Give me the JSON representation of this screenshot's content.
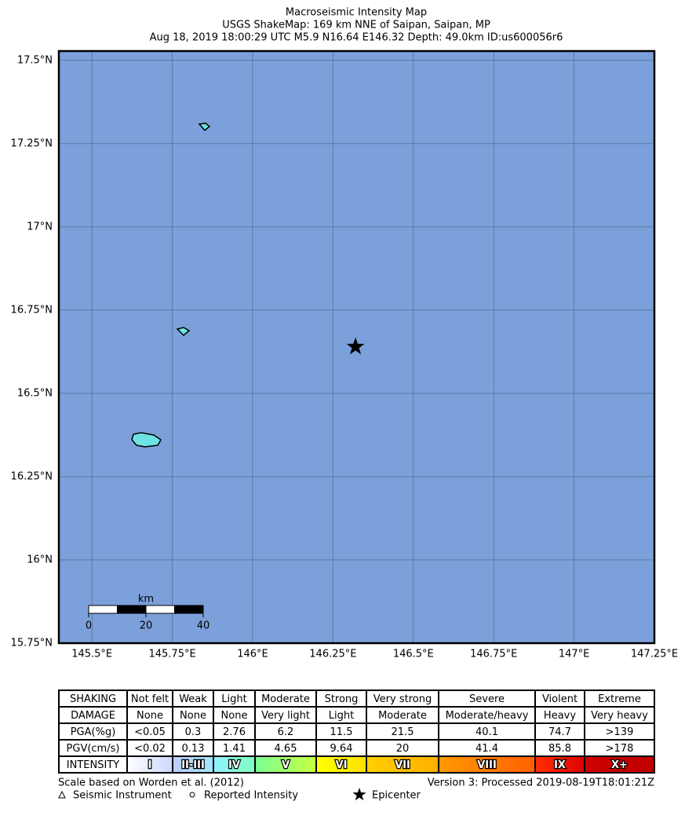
{
  "map": {
    "title": [
      "Macroseismic Intensity Map",
      "USGS ShakeMap: 169 km NNE of Saipan, Saipan, MP",
      "Aug 18, 2019 18:00:29 UTC M5.9 N16.64 E146.32 Depth: 49.0km ID:us600056r6"
    ],
    "xlim": [
      145.397,
      147.25
    ],
    "ylim": [
      15.75,
      17.528
    ],
    "xticks": [
      {
        "value": 145.5,
        "label": "145.5°E"
      },
      {
        "value": 145.75,
        "label": "145.75°E"
      },
      {
        "value": 146,
        "label": "146°E"
      },
      {
        "value": 146.25,
        "label": "146.25°E"
      },
      {
        "value": 146.5,
        "label": "146.5°E"
      },
      {
        "value": 146.75,
        "label": "146.75°E"
      },
      {
        "value": 147,
        "label": "147°E"
      },
      {
        "value": 147.25,
        "label": "147.25°E"
      }
    ],
    "yticks": [
      {
        "value": 17.5,
        "label": "17.5°N"
      },
      {
        "value": 17.25,
        "label": "17.25°N"
      },
      {
        "value": 17,
        "label": "17°N"
      },
      {
        "value": 16.75,
        "label": "16.75°N"
      },
      {
        "value": 16.5,
        "label": "16.5°N"
      },
      {
        "value": 16.25,
        "label": "16.25°N"
      },
      {
        "value": 16,
        "label": "16°N"
      },
      {
        "value": 15.75,
        "label": "15.75°N"
      }
    ],
    "grid": true,
    "background": "#7ba0da",
    "epicenter": {
      "lon": 146.32,
      "lat": 16.64
    },
    "scale_bar": {
      "unit": "km",
      "ticks": [
        0,
        20,
        40
      ]
    }
  },
  "legend_table": {
    "rows": [
      [
        "SHAKING",
        "Not felt",
        "Weak",
        "Light",
        "Moderate",
        "Strong",
        "Very strong",
        "Severe",
        "Violent",
        "Extreme"
      ],
      [
        "DAMAGE",
        "None",
        "None",
        "None",
        "Very light",
        "Light",
        "Moderate",
        "Moderate/heavy",
        "Heavy",
        "Very heavy"
      ],
      [
        "PGA(%g)",
        "<0.05",
        "0.3",
        "2.76",
        "6.2",
        "11.5",
        "21.5",
        "40.1",
        "74.7",
        ">139"
      ],
      [
        "PGV(cm/s)",
        "<0.02",
        "0.13",
        "1.41",
        "4.65",
        "9.64",
        "20",
        "41.4",
        "85.8",
        ">178"
      ],
      [
        "INTENSITY",
        "I",
        "II-III",
        "IV",
        "V",
        "VI",
        "VII",
        "VIII",
        "IX",
        "X+"
      ]
    ],
    "intensity_colors": [
      [
        "#ffffff",
        "#ccd8ff"
      ],
      [
        "#bfccff",
        "#a0e6ff"
      ],
      [
        "#90f2ff",
        "#80ffc0"
      ],
      [
        "#7aff93",
        "#c8ff40"
      ],
      [
        "#ffff00",
        "#ffe000"
      ],
      [
        "#ffd000",
        "#ffb000"
      ],
      [
        "#ff9a00",
        "#ff6000"
      ],
      [
        "#ff3000",
        "#e00000"
      ],
      [
        "#d00000",
        "#c00000"
      ]
    ]
  },
  "footer": {
    "scale_note": "Scale based on Worden et al. (2012)",
    "version": "Version 3: Processed 2019-08-19T18:01:21Z",
    "legend": [
      "Seismic Instrument",
      "Reported Intensity",
      "Epicenter"
    ]
  }
}
